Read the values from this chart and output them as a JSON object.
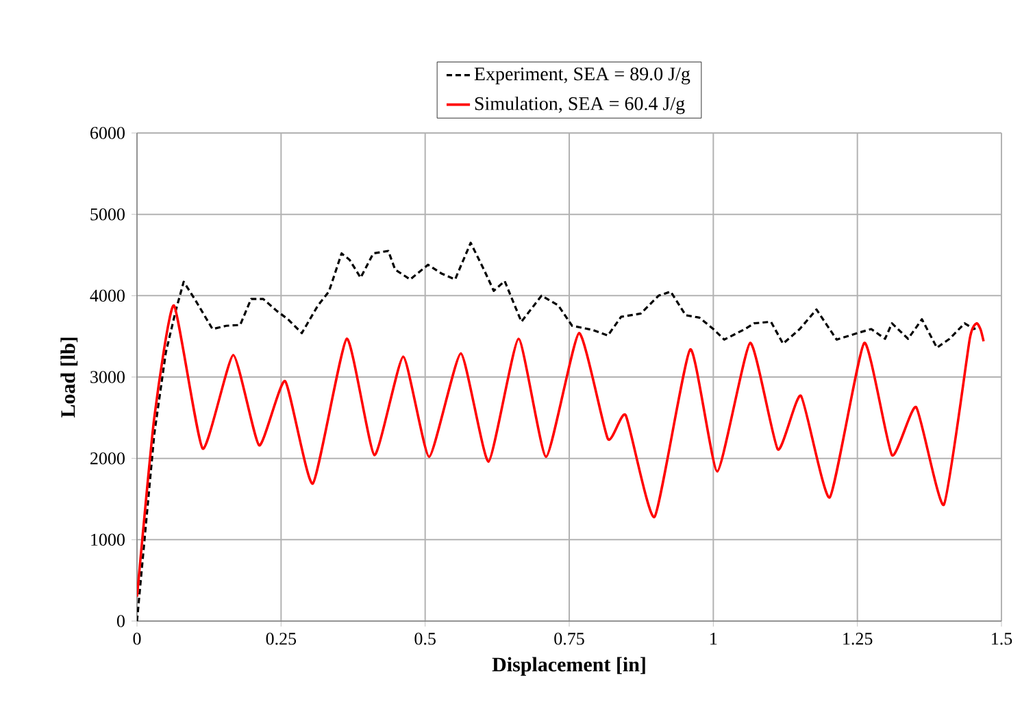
{
  "chart_data": {
    "type": "line",
    "xlabel": "Displacement [in]",
    "ylabel": "Load [lb]",
    "xlim": [
      0,
      1.5
    ],
    "ylim": [
      0,
      6000
    ],
    "xticks": [
      0,
      0.25,
      0.5,
      0.75,
      1,
      1.25,
      1.5
    ],
    "yticks": [
      0,
      1000,
      2000,
      3000,
      4000,
      5000,
      6000
    ],
    "grid": true,
    "legend": "top",
    "marker": "none",
    "series": [
      {
        "name": "Experiment, SEA = 89.0 J/g",
        "color": "#000000",
        "line_style": "dashed",
        "x": [
          0,
          0.03,
          0.05,
          0.067,
          0.081,
          0.1,
          0.131,
          0.155,
          0.179,
          0.198,
          0.219,
          0.243,
          0.262,
          0.286,
          0.314,
          0.333,
          0.355,
          0.369,
          0.388,
          0.41,
          0.436,
          0.448,
          0.474,
          0.505,
          0.529,
          0.552,
          0.579,
          0.602,
          0.619,
          0.638,
          0.667,
          0.702,
          0.731,
          0.755,
          0.79,
          0.817,
          0.84,
          0.874,
          0.905,
          0.926,
          0.952,
          0.976,
          1.0,
          1.019,
          1.055,
          1.071,
          1.1,
          1.121,
          1.15,
          1.179,
          1.214,
          1.25,
          1.274,
          1.298,
          1.31,
          1.338,
          1.362,
          1.388,
          1.41,
          1.436,
          1.452,
          1.455
        ],
        "values": [
          0,
          2300,
          3300,
          3810,
          4170,
          3960,
          3590,
          3630,
          3640,
          3960,
          3960,
          3810,
          3710,
          3540,
          3880,
          4050,
          4520,
          4440,
          4220,
          4520,
          4550,
          4320,
          4200,
          4380,
          4270,
          4200,
          4650,
          4320,
          4060,
          4180,
          3680,
          4000,
          3880,
          3630,
          3580,
          3510,
          3740,
          3780,
          4000,
          4050,
          3760,
          3730,
          3590,
          3460,
          3590,
          3660,
          3680,
          3410,
          3590,
          3830,
          3460,
          3540,
          3590,
          3470,
          3660,
          3470,
          3710,
          3360,
          3470,
          3660,
          3590,
          3600
        ]
      },
      {
        "name": "Simulation, SEA = 60.4 J/g",
        "color": "#ff0000",
        "line_style": "solid",
        "x": [
          0,
          0.03,
          0.064,
          0.114,
          0.167,
          0.212,
          0.257,
          0.305,
          0.364,
          0.412,
          0.462,
          0.507,
          0.562,
          0.61,
          0.662,
          0.71,
          0.767,
          0.817,
          0.848,
          0.898,
          0.96,
          1.007,
          1.064,
          1.112,
          1.152,
          1.202,
          1.262,
          1.31,
          1.352,
          1.4,
          1.445,
          1.457,
          1.464,
          1.469
        ],
        "values": [
          300,
          2500,
          3880,
          2120,
          3270,
          2160,
          2950,
          1690,
          3470,
          2040,
          3250,
          2020,
          3290,
          1960,
          3470,
          2020,
          3540,
          2240,
          2530,
          1280,
          3340,
          1840,
          3420,
          2110,
          2770,
          1520,
          3420,
          2040,
          2630,
          1430,
          3470,
          3660,
          3580,
          3440
        ]
      }
    ]
  }
}
